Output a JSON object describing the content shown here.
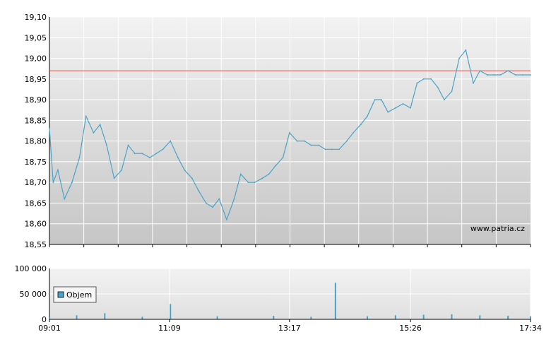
{
  "watermark": "www.patria.cz",
  "colors": {
    "price_line": "#4aa3c8",
    "reference_line": "#e05a4f",
    "volume_bar": "#4aa3c8",
    "grid": "#ffffff",
    "panel_top": "#f2f2f2",
    "panel_bottom": "#c6c6c6",
    "axis": "#000000"
  },
  "chart_data": [
    {
      "type": "line",
      "title": "",
      "xlabel": "",
      "ylabel": "",
      "xlim": [
        "09:01",
        "17:34"
      ],
      "ylim": [
        18.55,
        19.1
      ],
      "grid": true,
      "y_ticks": [
        "19,10",
        "19,05",
        "19,00",
        "18,95",
        "18,90",
        "18,85",
        "18,80",
        "18,75",
        "18,70",
        "18,65",
        "18,60",
        "18,55"
      ],
      "reference_line": {
        "value": 18.97
      },
      "series": [
        {
          "x": [
            "09:01",
            "09:05",
            "09:10",
            "09:17",
            "09:25",
            "09:33",
            "09:40",
            "09:48",
            "09:55",
            "10:02",
            "10:10",
            "10:18",
            "10:25",
            "10:32",
            "10:40",
            "10:48",
            "10:55",
            "11:02",
            "11:10",
            "11:18",
            "11:25",
            "11:33",
            "11:40",
            "11:48",
            "11:55",
            "12:02",
            "12:10",
            "12:18",
            "12:25",
            "12:33",
            "12:40",
            "12:48",
            "12:55",
            "13:02",
            "13:10",
            "13:17",
            "13:25",
            "13:33",
            "13:40",
            "13:48",
            "13:55",
            "14:02",
            "14:10",
            "14:18",
            "14:25",
            "14:33",
            "14:40",
            "14:48",
            "14:55",
            "15:02",
            "15:10",
            "15:18",
            "15:26",
            "15:33",
            "15:40",
            "15:48",
            "15:55",
            "16:02",
            "16:10",
            "16:18",
            "16:25",
            "16:33",
            "16:40",
            "16:48",
            "16:55",
            "17:02",
            "17:10",
            "17:18",
            "17:26",
            "17:34"
          ],
          "values": [
            18.83,
            18.7,
            18.73,
            18.66,
            18.7,
            18.76,
            18.86,
            18.82,
            18.84,
            18.79,
            18.71,
            18.73,
            18.79,
            18.77,
            18.77,
            18.76,
            18.77,
            18.78,
            18.8,
            18.76,
            18.73,
            18.71,
            18.68,
            18.65,
            18.64,
            18.66,
            18.61,
            18.66,
            18.72,
            18.7,
            18.7,
            18.71,
            18.72,
            18.74,
            18.76,
            18.82,
            18.8,
            18.8,
            18.79,
            18.79,
            18.78,
            18.78,
            18.78,
            18.8,
            18.82,
            18.84,
            18.86,
            18.9,
            18.9,
            18.87,
            18.88,
            18.89,
            18.88,
            18.94,
            18.95,
            18.95,
            18.93,
            18.9,
            18.92,
            19.0,
            19.02,
            18.94,
            18.97,
            18.96,
            18.96,
            18.96,
            18.97,
            18.96,
            18.96,
            18.96
          ]
        }
      ]
    },
    {
      "type": "bar",
      "title": "",
      "xlabel": "",
      "ylabel": "",
      "x_ticks": [
        "09:01",
        "11:09",
        "13:17",
        "15:26",
        "17:34"
      ],
      "y_ticks": [
        "100 000",
        "50 000",
        "0"
      ],
      "ylim": [
        0,
        100000
      ],
      "grid": true,
      "legend": {
        "placement": "left",
        "entries": [
          "Objem"
        ]
      },
      "series": [
        {
          "name": "Objem",
          "x": [
            "09:01",
            "09:30",
            "10:00",
            "10:40",
            "11:10",
            "12:00",
            "13:00",
            "13:40",
            "14:06",
            "14:40",
            "15:10",
            "15:40",
            "16:10",
            "16:40",
            "17:10",
            "17:34"
          ],
          "values": [
            4000,
            8000,
            12000,
            5000,
            30000,
            6000,
            7000,
            5000,
            72000,
            6000,
            8000,
            9000,
            10000,
            8000,
            7000,
            6000
          ]
        }
      ]
    }
  ]
}
